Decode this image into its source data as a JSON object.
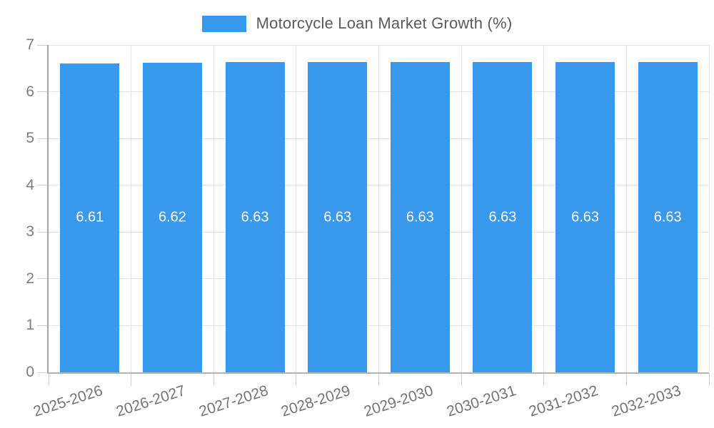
{
  "chart_data": {
    "type": "bar",
    "title": "Motorcycle Loan Market Growth (%)",
    "categories": [
      "2025-2026",
      "2026-2027",
      "2027-2028",
      "2028-2029",
      "2029-2030",
      "2030-2031",
      "2031-2032",
      "2032-2033"
    ],
    "values": [
      6.61,
      6.62,
      6.63,
      6.63,
      6.63,
      6.63,
      6.63,
      6.63
    ],
    "value_labels": [
      "6.61",
      "6.62",
      "6.63",
      "6.63",
      "6.63",
      "6.63",
      "6.63",
      "6.63"
    ],
    "xlabel": "",
    "ylabel": "",
    "ylim": [
      0,
      7
    ],
    "yticks": [
      "0",
      "1",
      "2",
      "3",
      "4",
      "5",
      "6",
      "7"
    ],
    "grid": true,
    "legend_position": "top",
    "colors": {
      "bar": "#3898EC",
      "bar_label": "#ffffff",
      "title_text": "#5b5b5b",
      "axis_tick_text": "#7d7d7d",
      "gridline": "#e4e4e4",
      "axis_line": "#a6a6a6"
    }
  }
}
